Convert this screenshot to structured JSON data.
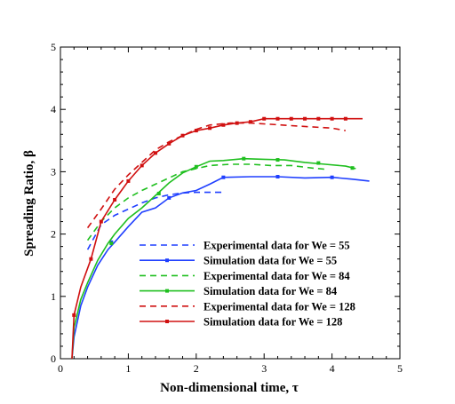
{
  "chart_data": {
    "type": "line",
    "title": "",
    "xlabel": "Non-dimensional time, τ",
    "ylabel": "Spreading Ratio, β",
    "xlim": [
      0,
      5
    ],
    "ylim": [
      0,
      5
    ],
    "xticks": [
      "0",
      "1",
      "2",
      "3",
      "4",
      "5"
    ],
    "yticks": [
      "0",
      "1",
      "2",
      "3",
      "4",
      "5"
    ],
    "grid": false,
    "legend_position": "bottom-center",
    "series": [
      {
        "name": "Experimental data for We = 55",
        "style": "dashed",
        "color": "#1f3fff",
        "x": [
          0.4,
          0.6,
          0.8,
          1.0,
          1.2,
          1.4,
          1.6,
          1.8,
          2.0,
          2.2,
          2.4
        ],
        "y": [
          1.75,
          2.15,
          2.3,
          2.4,
          2.5,
          2.58,
          2.63,
          2.66,
          2.67,
          2.67,
          2.67
        ]
      },
      {
        "name": "Simulation data for We = 55",
        "style": "solid-marker",
        "color": "#1f3fff",
        "x": [
          0.17,
          0.2,
          0.3,
          0.4,
          0.55,
          0.7,
          0.8,
          1.0,
          1.2,
          1.4,
          1.6,
          1.8,
          2.0,
          2.2,
          2.4,
          2.8,
          3.2,
          3.6,
          4.0,
          4.3,
          4.55
        ],
        "y": [
          0.0,
          0.35,
          0.85,
          1.15,
          1.5,
          1.75,
          1.87,
          2.12,
          2.35,
          2.42,
          2.58,
          2.66,
          2.7,
          2.8,
          2.91,
          2.92,
          2.92,
          2.9,
          2.91,
          2.88,
          2.85
        ],
        "marker_x": [
          0.75,
          1.6,
          2.4,
          3.2,
          4.0
        ],
        "marker_y": [
          1.87,
          2.58,
          2.91,
          2.92,
          2.91
        ]
      },
      {
        "name": "Experimental data for We = 84",
        "style": "dashed",
        "color": "#1fbf1f",
        "x": [
          0.4,
          0.6,
          0.8,
          1.0,
          1.2,
          1.4,
          1.6,
          1.8,
          2.0,
          2.2,
          2.5,
          2.8,
          3.1,
          3.4,
          3.7,
          3.9
        ],
        "y": [
          1.9,
          2.2,
          2.42,
          2.58,
          2.7,
          2.8,
          2.9,
          3.0,
          3.05,
          3.1,
          3.12,
          3.12,
          3.1,
          3.1,
          3.06,
          3.04
        ]
      },
      {
        "name": "Simulation data for We = 84",
        "style": "solid-marker",
        "color": "#1fbf1f",
        "x": [
          0.17,
          0.2,
          0.3,
          0.4,
          0.55,
          0.7,
          0.8,
          1.0,
          1.2,
          1.4,
          1.6,
          1.8,
          2.0,
          2.2,
          2.4,
          2.7,
          3.0,
          3.3,
          3.6,
          3.9,
          4.2,
          4.35
        ],
        "y": [
          0.0,
          0.5,
          0.95,
          1.22,
          1.58,
          1.85,
          2.0,
          2.25,
          2.42,
          2.62,
          2.82,
          2.98,
          3.08,
          3.17,
          3.18,
          3.21,
          3.2,
          3.19,
          3.15,
          3.12,
          3.09,
          3.05
        ],
        "marker_x": [
          0.75,
          1.45,
          2.0,
          2.7,
          3.2,
          3.8,
          4.3
        ],
        "marker_y": [
          1.85,
          2.65,
          3.08,
          3.21,
          3.19,
          3.14,
          3.06
        ]
      },
      {
        "name": "Experimental data for We = 128",
        "style": "dashed",
        "color": "#d01010",
        "x": [
          0.4,
          0.6,
          0.8,
          1.0,
          1.2,
          1.4,
          1.6,
          1.8,
          2.0,
          2.2,
          2.5,
          2.8,
          3.1,
          3.4,
          3.7,
          4.0,
          4.2
        ],
        "y": [
          2.1,
          2.4,
          2.72,
          2.95,
          3.15,
          3.35,
          3.48,
          3.58,
          3.68,
          3.75,
          3.78,
          3.78,
          3.76,
          3.74,
          3.72,
          3.7,
          3.66
        ]
      },
      {
        "name": "Simulation data for We = 128",
        "style": "solid-marker",
        "color": "#d01010",
        "x": [
          0.17,
          0.2,
          0.3,
          0.45,
          0.6,
          0.8,
          1.0,
          1.2,
          1.4,
          1.6,
          1.8,
          2.0,
          2.2,
          2.4,
          2.6,
          2.8,
          3.0,
          3.2,
          3.4,
          3.6,
          3.8,
          4.0,
          4.2,
          4.45
        ],
        "y": [
          0.0,
          0.7,
          1.15,
          1.6,
          2.2,
          2.55,
          2.85,
          3.1,
          3.3,
          3.45,
          3.58,
          3.66,
          3.7,
          3.75,
          3.78,
          3.8,
          3.85,
          3.85,
          3.85,
          3.85,
          3.85,
          3.85,
          3.85,
          3.85
        ],
        "marker_x": [
          0.2,
          0.45,
          0.6,
          0.8,
          1.0,
          1.2,
          1.4,
          1.6,
          1.8,
          2.0,
          2.2,
          2.4,
          2.6,
          2.8,
          3.0,
          3.2,
          3.4,
          3.6,
          3.8,
          4.0,
          4.2
        ],
        "marker_y": [
          0.7,
          1.6,
          2.2,
          2.55,
          2.85,
          3.1,
          3.3,
          3.45,
          3.58,
          3.66,
          3.7,
          3.75,
          3.78,
          3.8,
          3.85,
          3.85,
          3.85,
          3.85,
          3.85,
          3.85,
          3.85
        ]
      }
    ]
  }
}
